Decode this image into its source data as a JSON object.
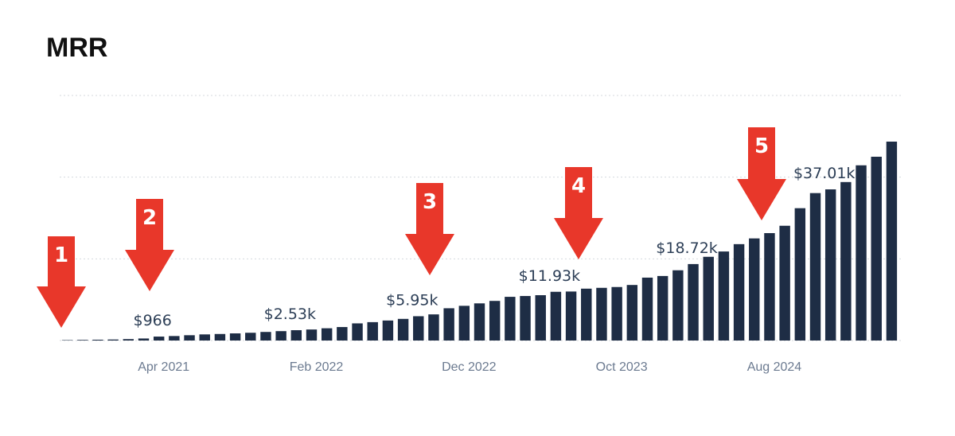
{
  "chart_data": {
    "type": "bar",
    "title": "MRR",
    "categories": [
      null,
      null,
      null,
      null,
      null,
      null,
      "Apr 2021",
      null,
      null,
      null,
      null,
      null,
      null,
      null,
      null,
      null,
      "Feb 2022",
      null,
      null,
      null,
      null,
      null,
      null,
      null,
      null,
      null,
      "Dec 2022",
      null,
      null,
      null,
      null,
      null,
      null,
      null,
      null,
      null,
      "Oct 2023",
      null,
      null,
      null,
      null,
      null,
      null,
      null,
      null,
      null,
      "Aug 2024",
      null,
      null,
      null,
      null,
      null,
      null,
      null,
      null
    ],
    "values": [
      100,
      150,
      200,
      250,
      350,
      500,
      966,
      1100,
      1300,
      1500,
      1600,
      1750,
      1900,
      2100,
      2300,
      2530,
      2700,
      3000,
      3300,
      4200,
      4500,
      4900,
      5300,
      5950,
      6400,
      7900,
      8500,
      9100,
      9700,
      10700,
      10900,
      11100,
      11930,
      12000,
      12700,
      12900,
      13100,
      13600,
      15400,
      15800,
      17200,
      18720,
      20500,
      21800,
      23600,
      25000,
      26300,
      28100,
      32400,
      36100,
      37010,
      38800,
      42900,
      45000,
      48700
    ],
    "value_labels": [
      null,
      null,
      null,
      null,
      null,
      null,
      "$966",
      null,
      null,
      null,
      null,
      null,
      null,
      null,
      null,
      "$2.53k",
      null,
      null,
      null,
      null,
      null,
      null,
      null,
      "$5.95k",
      null,
      null,
      null,
      null,
      null,
      null,
      null,
      null,
      "$11.93k",
      null,
      null,
      null,
      null,
      null,
      null,
      null,
      null,
      "$18.72k",
      null,
      null,
      null,
      null,
      null,
      null,
      null,
      null,
      "$37.01k",
      null,
      null,
      null,
      null
    ],
    "color": "#1e2d45",
    "ylim": [
      0,
      60000
    ],
    "yticks": [
      0,
      20000,
      40000,
      60000
    ],
    "grid": true,
    "annotations": [
      "1",
      "2",
      "3",
      "4",
      "5"
    ],
    "annotation_color": "#e8372a"
  }
}
